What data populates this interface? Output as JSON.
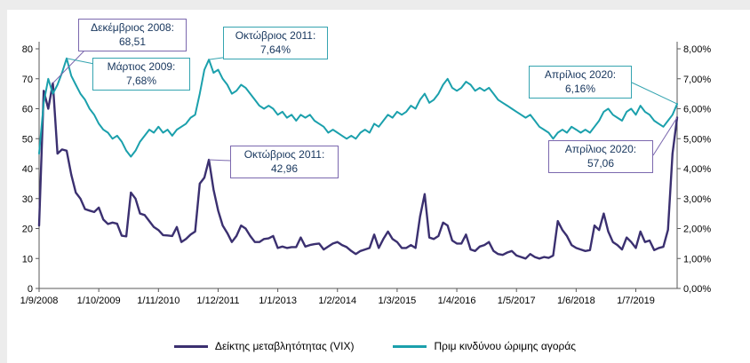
{
  "colors": {
    "vix_line": "#3b3070",
    "erp_line": "#1ba0ac",
    "purple_callout_border": "#7b68ae",
    "teal_callout_border": "#35a4b0",
    "annotation_text": "#17365d",
    "axis_text": "#000000"
  },
  "legend": {
    "items": [
      {
        "label": "Δείκτης μεταβλητότητας (VIX)",
        "color": "#3b3070"
      },
      {
        "label": "Πριμ κινδύνου ώριμης αγοράς",
        "color": "#1ba0ac"
      }
    ]
  },
  "annotations": [
    {
      "line1": "Δεκέμβριος 2008:",
      "line2": "68,51",
      "series": "vix"
    },
    {
      "line1": "Μάρτιος 2009:",
      "line2": "7,68%",
      "series": "erp"
    },
    {
      "line1": "Οκτώβριος 2011:",
      "line2": "7,64%",
      "series": "erp"
    },
    {
      "line1": "Οκτώβριος 2011:",
      "line2": "42,96",
      "series": "vix"
    },
    {
      "line1": "Απρίλιος 2020:",
      "line2": "6,16%",
      "series": "erp"
    },
    {
      "line1": "Απρίλιος 2020:",
      "line2": "57,06",
      "series": "vix"
    }
  ],
  "chart_data": {
    "type": "line",
    "title": "",
    "n_points": 140,
    "x_start": "1/9/2008",
    "x_end": "1/4/2020",
    "x_tick_labels": [
      "1/9/2008",
      "1/10/2009",
      "1/11/2010",
      "1/12/2011",
      "1/1/2013",
      "1/2/2014",
      "1/3/2015",
      "1/4/2016",
      "1/5/2017",
      "1/6/2018",
      "1/7/2019"
    ],
    "x_tick_indices": [
      0,
      13,
      26,
      39,
      52,
      65,
      78,
      91,
      104,
      117,
      130
    ],
    "left_axis": {
      "min": 0,
      "max": 80,
      "step": 10,
      "tick_labels": [
        "0",
        "10",
        "20",
        "30",
        "40",
        "50",
        "60",
        "70",
        "80"
      ]
    },
    "right_axis": {
      "min": 0,
      "max": 8,
      "step": 1,
      "tick_labels": [
        "0,00%",
        "1,00%",
        "2,00%",
        "3,00%",
        "4,00%",
        "5,00%",
        "6,00%",
        "7,00%",
        "8,00%"
      ]
    },
    "grid": false,
    "legend_position": "bottom",
    "key_points": [
      {
        "label": "Δεκέμβριος 2008",
        "series": "VIX",
        "value": 68.51
      },
      {
        "label": "Μάρτιος 2009",
        "series": "ERP",
        "value_pct": 7.68
      },
      {
        "label": "Οκτώβριος 2011",
        "series": "ERP",
        "value_pct": 7.64
      },
      {
        "label": "Οκτώβριος 2011",
        "series": "VIX",
        "value": 42.96
      },
      {
        "label": "Απρίλιος 2020",
        "series": "ERP",
        "value_pct": 6.16
      },
      {
        "label": "Απρίλιος 2020",
        "series": "VIX",
        "value": 57.06
      }
    ],
    "series": [
      {
        "name": "Δείκτης μεταβλητότητας (VIX)",
        "axis": "left",
        "color": "#3b3070",
        "values": [
          21.0,
          66.0,
          60.0,
          68.51,
          45.0,
          46.4,
          46.0,
          38.0,
          32.0,
          30.0,
          26.5,
          26.0,
          25.5,
          27.0,
          23.0,
          21.5,
          22.0,
          21.6,
          17.6,
          17.4,
          32.0,
          30.0,
          25.0,
          24.5,
          22.5,
          20.5,
          19.5,
          17.8,
          17.7,
          17.5,
          20.5,
          15.5,
          16.5,
          18.0,
          19.0,
          35.0,
          37.0,
          42.96,
          33.0,
          26.0,
          21.0,
          18.5,
          15.5,
          17.5,
          21.0,
          20.0,
          17.5,
          15.5,
          15.5,
          16.5,
          16.7,
          17.5,
          13.5,
          14.0,
          13.5,
          13.8,
          13.8,
          17.0,
          14.0,
          14.5,
          14.8,
          15.0,
          13.0,
          14.0,
          15.0,
          15.5,
          14.5,
          13.8,
          12.5,
          11.5,
          12.5,
          13.0,
          13.5,
          18.0,
          13.5,
          16.5,
          19.0,
          16.5,
          15.5,
          13.5,
          13.5,
          14.5,
          13.5,
          24.0,
          31.5,
          17.0,
          16.5,
          17.5,
          22.0,
          21.0,
          16.0,
          15.0,
          15.0,
          18.0,
          13.0,
          12.5,
          14.0,
          14.5,
          15.5,
          12.5,
          11.5,
          11.2,
          12.0,
          12.5,
          11.0,
          10.5,
          10.0,
          11.5,
          10.5,
          10.0,
          10.5,
          10.2,
          11.0,
          22.5,
          19.5,
          17.5,
          14.5,
          13.5,
          13.0,
          12.5,
          12.8,
          21.0,
          19.5,
          25.0,
          19.0,
          15.5,
          14.5,
          13.0,
          17.0,
          15.5,
          13.5,
          19.0,
          15.5,
          16.0,
          12.8,
          13.5,
          13.9,
          19.6,
          45.0,
          57.06
        ]
      },
      {
        "name": "Πριμ κινδύνου ώριμης αγοράς",
        "axis": "right",
        "color": "#1ba0ac",
        "values": [
          4.5,
          6.2,
          7.0,
          6.5,
          6.8,
          7.2,
          7.68,
          7.1,
          6.8,
          6.5,
          6.3,
          6.0,
          5.8,
          5.5,
          5.3,
          5.2,
          5.0,
          5.1,
          4.9,
          4.6,
          4.4,
          4.6,
          4.9,
          5.1,
          5.3,
          5.2,
          5.4,
          5.2,
          5.3,
          5.1,
          5.3,
          5.4,
          5.5,
          5.7,
          5.8,
          6.5,
          7.3,
          7.64,
          7.2,
          7.3,
          7.0,
          6.8,
          6.5,
          6.6,
          6.8,
          6.7,
          6.5,
          6.3,
          6.1,
          6.0,
          6.1,
          6.0,
          5.8,
          5.9,
          5.7,
          5.8,
          5.6,
          5.8,
          5.7,
          5.8,
          5.6,
          5.5,
          5.4,
          5.2,
          5.3,
          5.2,
          5.1,
          5.0,
          5.1,
          5.0,
          5.2,
          5.3,
          5.2,
          5.5,
          5.4,
          5.6,
          5.8,
          5.7,
          5.9,
          5.8,
          5.9,
          6.1,
          6.0,
          6.3,
          6.5,
          6.2,
          6.3,
          6.5,
          6.8,
          7.0,
          6.7,
          6.6,
          6.7,
          6.9,
          6.8,
          6.6,
          6.7,
          6.6,
          6.7,
          6.5,
          6.3,
          6.2,
          6.1,
          6.0,
          5.9,
          5.8,
          5.7,
          5.8,
          5.6,
          5.4,
          5.3,
          5.2,
          5.0,
          5.2,
          5.3,
          5.2,
          5.4,
          5.3,
          5.2,
          5.3,
          5.2,
          5.4,
          5.6,
          5.9,
          6.0,
          5.8,
          5.7,
          5.6,
          5.9,
          6.0,
          5.8,
          6.1,
          5.9,
          5.8,
          5.6,
          5.5,
          5.4,
          5.6,
          5.8,
          6.16
        ]
      }
    ]
  }
}
